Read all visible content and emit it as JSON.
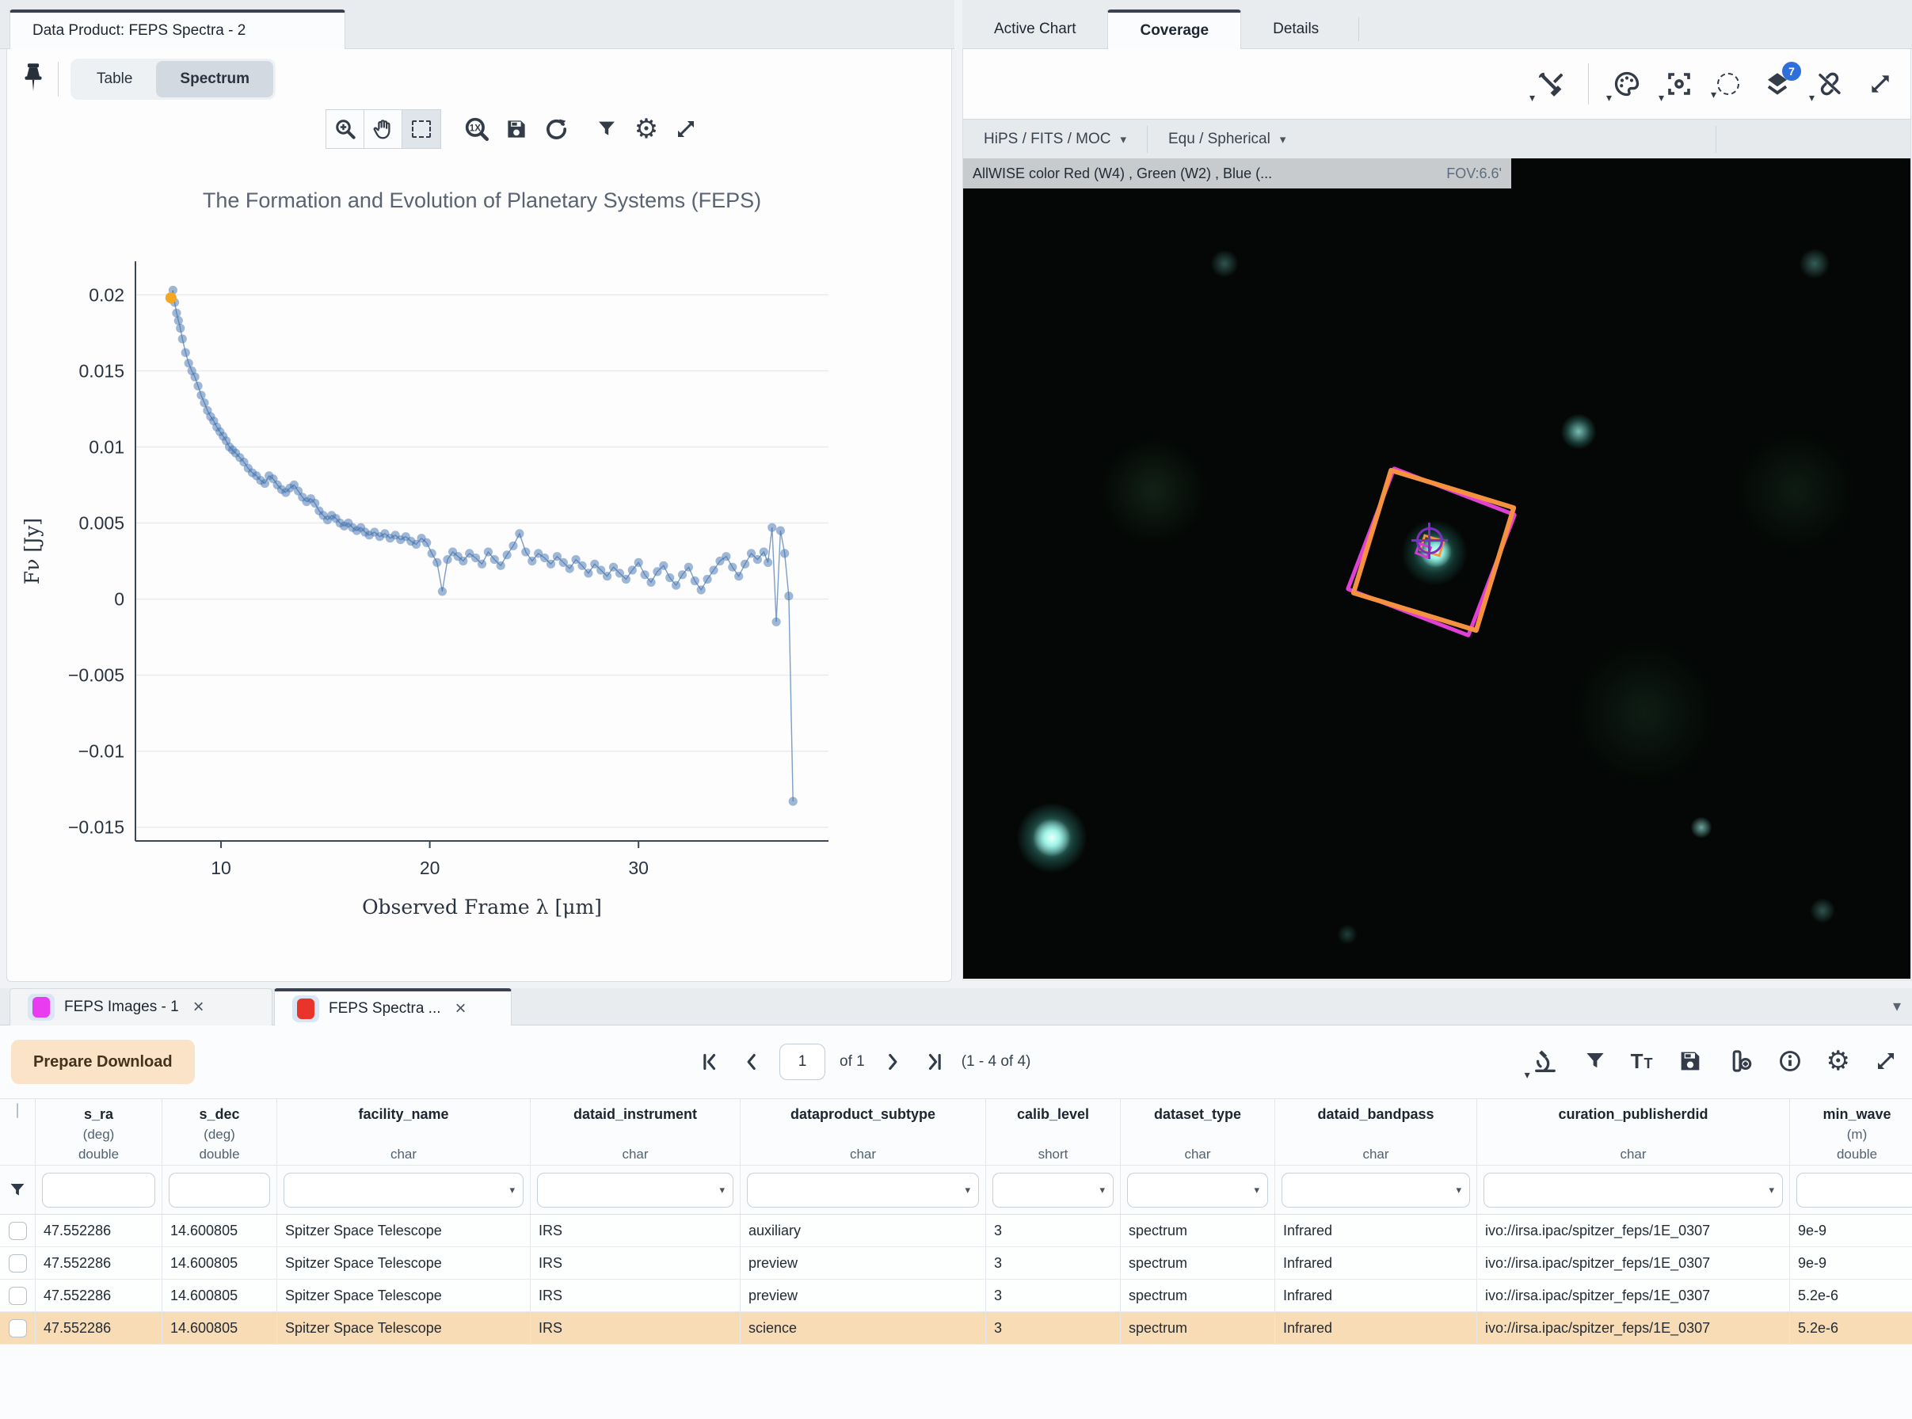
{
  "left_panel": {
    "tab_title": "Data Product: FEPS Spectra - 2",
    "view_toggle": {
      "table_label": "Table",
      "spectrum_label": "Spectrum"
    },
    "chart_toolbar_icons": [
      "zoom-in",
      "pan",
      "box-select",
      "zoom-1x",
      "save",
      "refresh",
      "filter",
      "settings",
      "expand"
    ]
  },
  "chart_data": {
    "type": "line",
    "title": "The Formation and Evolution of Planetary Systems (FEPS)",
    "xlabel": "Observed Frame λ [μm]",
    "ylabel": "Fν [Jy]",
    "xlim": [
      5.9,
      39.1
    ],
    "ylim": [
      -0.0159,
      0.0222
    ],
    "xticks": [
      10,
      20,
      30
    ],
    "yticks": [
      -0.015,
      -0.01,
      -0.005,
      0,
      0.005,
      0.01,
      0.015,
      0.02
    ],
    "grid": true,
    "legend": "none",
    "marker_color": "rgba(66,114,173,0.5)",
    "line_color": "#6f94bf",
    "highlight_index": 0,
    "highlight_color": "#f5a623",
    "x": [
      7.6,
      7.7,
      7.78,
      7.87,
      7.96,
      8.05,
      8.15,
      8.3,
      8.45,
      8.6,
      8.75,
      8.9,
      9.05,
      9.2,
      9.35,
      9.5,
      9.65,
      9.8,
      9.95,
      10.1,
      10.25,
      10.4,
      10.55,
      10.7,
      10.9,
      11.1,
      11.3,
      11.5,
      11.7,
      11.9,
      12.1,
      12.3,
      12.5,
      12.7,
      12.9,
      13.1,
      13.3,
      13.5,
      13.7,
      13.9,
      14.1,
      14.3,
      14.5,
      14.7,
      14.9,
      15.1,
      15.3,
      15.5,
      15.7,
      15.9,
      16.1,
      16.3,
      16.5,
      16.7,
      16.9,
      17.1,
      17.35,
      17.6,
      17.85,
      18.1,
      18.35,
      18.6,
      18.85,
      19.1,
      19.35,
      19.6,
      19.85,
      20.1,
      20.35,
      20.6,
      20.85,
      21.1,
      21.35,
      21.6,
      21.9,
      22.2,
      22.5,
      22.8,
      23.1,
      23.4,
      23.7,
      24,
      24.3,
      24.6,
      24.9,
      25.2,
      25.5,
      25.8,
      26.1,
      26.4,
      26.7,
      27,
      27.3,
      27.6,
      27.9,
      28.2,
      28.5,
      28.8,
      29.1,
      29.4,
      29.7,
      30,
      30.3,
      30.6,
      30.9,
      31.2,
      31.5,
      31.8,
      32.1,
      32.4,
      32.7,
      33,
      33.3,
      33.6,
      33.9,
      34.2,
      34.5,
      34.8,
      35.1,
      35.4,
      35.7,
      36,
      36.2,
      36.4,
      36.6,
      36.8,
      37,
      37.2,
      37.4
    ],
    "y": [
      0.0198,
      0.0203,
      0.0195,
      0.0188,
      0.0183,
      0.0178,
      0.0171,
      0.0162,
      0.0155,
      0.015,
      0.0146,
      0.014,
      0.0134,
      0.0129,
      0.0124,
      0.012,
      0.0117,
      0.0113,
      0.011,
      0.0107,
      0.0104,
      0.01,
      0.0098,
      0.0096,
      0.0093,
      0.009,
      0.0086,
      0.0083,
      0.0081,
      0.0078,
      0.0076,
      0.0081,
      0.0079,
      0.0075,
      0.0072,
      0.007,
      0.0073,
      0.0075,
      0.0071,
      0.0067,
      0.0064,
      0.0066,
      0.0063,
      0.0058,
      0.0055,
      0.0052,
      0.0055,
      0.0053,
      0.005,
      0.0048,
      0.005,
      0.0047,
      0.0045,
      0.0047,
      0.0044,
      0.0042,
      0.0044,
      0.0041,
      0.0043,
      0.004,
      0.0042,
      0.0039,
      0.0041,
      0.0038,
      0.0036,
      0.004,
      0.0037,
      0.003,
      0.0024,
      0.0005,
      0.0026,
      0.0031,
      0.0028,
      0.0025,
      0.003,
      0.0027,
      0.0023,
      0.0031,
      0.0026,
      0.0022,
      0.0029,
      0.0035,
      0.0043,
      0.0031,
      0.0025,
      0.003,
      0.0027,
      0.0023,
      0.0028,
      0.0024,
      0.002,
      0.0026,
      0.0022,
      0.0017,
      0.0023,
      0.0019,
      0.0015,
      0.0021,
      0.0017,
      0.0013,
      0.0019,
      0.0024,
      0.0016,
      0.0011,
      0.0018,
      0.0022,
      0.0014,
      0.0009,
      0.0016,
      0.0021,
      0.0012,
      0.0006,
      0.0013,
      0.0019,
      0.0025,
      0.0028,
      0.0021,
      0.0015,
      0.0023,
      0.003,
      0.0026,
      0.0031,
      0.0024,
      0.0047,
      -0.0015,
      0.0045,
      0.003,
      0.0002,
      -0.0133
    ]
  },
  "right_panel": {
    "tabs": {
      "active_chart": "Active Chart",
      "coverage": "Coverage",
      "details": "Details"
    },
    "active_tab": "Coverage",
    "toolbar_icons": [
      "tools",
      "color-palette",
      "recenter",
      "select-region",
      "layers",
      "unlink",
      "expand"
    ],
    "layers_badge": "7",
    "hips_selector": "HiPS / FITS / MOC",
    "projection_selector": "Equ / Spherical",
    "dropdown_caret": "▾",
    "survey_label": "AllWISE color Red (W4) , Green (W2) , Blue (...",
    "fov_label": "FOV:6.6'"
  },
  "bottom": {
    "tabs": [
      {
        "label": "FEPS Images - 1",
        "swatch_color": "#e93cf0",
        "close": "×"
      },
      {
        "label": "FEPS Spectra ...",
        "swatch_color": "#e8342a",
        "close": "×"
      }
    ],
    "active_tab_index": 1,
    "tabbar_caret": "▾",
    "download_button_label": "Prepare Download",
    "pagination": {
      "page_value": "1",
      "of_label": "of 1",
      "range_label": "(1 - 4 of 4)"
    },
    "toolbar_icons": [
      "data-products",
      "filter",
      "text-view",
      "save",
      "add-column",
      "info",
      "settings",
      "expand"
    ],
    "table": {
      "columns": [
        {
          "name": "s_ra",
          "unit": "(deg)",
          "type": "double",
          "filter_dropdown": false
        },
        {
          "name": "s_dec",
          "unit": "(deg)",
          "type": "double",
          "filter_dropdown": false
        },
        {
          "name": "facility_name",
          "unit": "",
          "type": "char",
          "filter_dropdown": true
        },
        {
          "name": "dataid_instrument",
          "unit": "",
          "type": "char",
          "filter_dropdown": true
        },
        {
          "name": "dataproduct_subtype",
          "unit": "",
          "type": "char",
          "filter_dropdown": true
        },
        {
          "name": "calib_level",
          "unit": "",
          "type": "short",
          "filter_dropdown": true
        },
        {
          "name": "dataset_type",
          "unit": "",
          "type": "char",
          "filter_dropdown": true
        },
        {
          "name": "dataid_bandpass",
          "unit": "",
          "type": "char",
          "filter_dropdown": true
        },
        {
          "name": "curation_publisherdid",
          "unit": "",
          "type": "char",
          "filter_dropdown": true
        },
        {
          "name": "min_wave",
          "unit": "(m)",
          "type": "double",
          "filter_dropdown": false
        }
      ],
      "rows": [
        [
          "47.552286",
          "14.600805",
          "Spitzer Space Telescope",
          "IRS",
          "auxiliary",
          "3",
          "spectrum",
          "Infrared",
          "ivo://irsa.ipac/spitzer_feps/1E_0307",
          "9e-9"
        ],
        [
          "47.552286",
          "14.600805",
          "Spitzer Space Telescope",
          "IRS",
          "preview",
          "3",
          "spectrum",
          "Infrared",
          "ivo://irsa.ipac/spitzer_feps/1E_0307",
          "9e-9"
        ],
        [
          "47.552286",
          "14.600805",
          "Spitzer Space Telescope",
          "IRS",
          "preview",
          "3",
          "spectrum",
          "Infrared",
          "ivo://irsa.ipac/spitzer_feps/1E_0307",
          "5.2e-6"
        ],
        [
          "47.552286",
          "14.600805",
          "Spitzer Space Telescope",
          "IRS",
          "science",
          "3",
          "spectrum",
          "Infrared",
          "ivo://irsa.ipac/spitzer_feps/1E_0307",
          "5.2e-6"
        ]
      ],
      "selected_row_index": 3
    }
  }
}
